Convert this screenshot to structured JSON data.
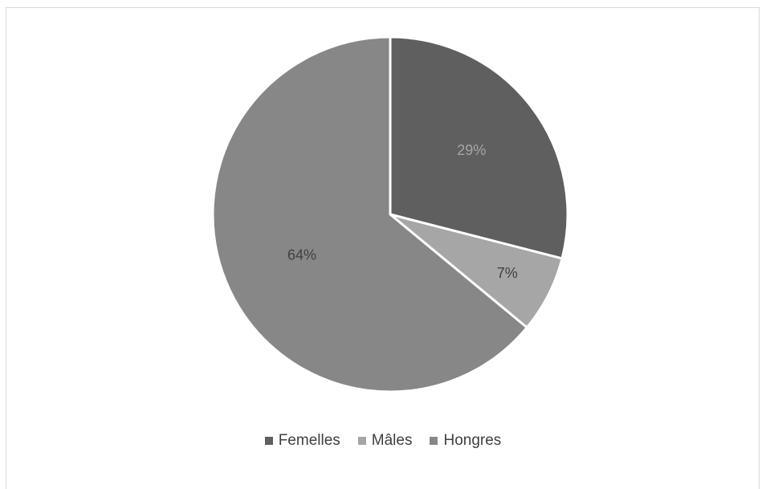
{
  "chart_data": {
    "type": "pie",
    "title": "",
    "slices": [
      {
        "label": "Femelles",
        "value": 29,
        "display": "29%",
        "color": "#5f5f5f",
        "label_color": "#a6a6a6"
      },
      {
        "label": "Mâles",
        "value": 7,
        "display": "7%",
        "color": "#a6a6a6",
        "label_color": "#404040"
      },
      {
        "label": "Hongres",
        "value": 64,
        "display": "64%",
        "color": "#878787",
        "label_color": "#404040"
      }
    ],
    "legend_position": "bottom",
    "start_angle": "12 o'clock",
    "direction": "clockwise"
  }
}
